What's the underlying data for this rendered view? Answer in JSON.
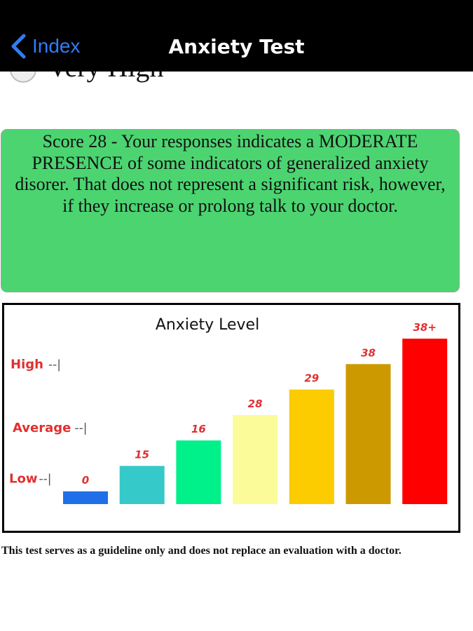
{
  "nav": {
    "back_label": "Index",
    "title": "Anxiety Test"
  },
  "partial_option": {
    "label": "Very High"
  },
  "result": {
    "text": "Score 28 - Your responses indicates a MODERATE PRESENCE of some indicators of generalized anxiety disorer. That does not represent a significant risk, however, if they increase or prolong talk to your doctor.",
    "background": "#4cd471"
  },
  "chart_data": {
    "type": "bar",
    "title": "Anxiety Level",
    "categories": [
      "0",
      "15",
      "16",
      "28",
      "29",
      "38",
      "38+"
    ],
    "values": [
      1,
      3,
      5,
      7,
      9,
      11,
      13
    ],
    "data_labels": [
      "0",
      "15",
      "16",
      "28",
      "29",
      "38",
      "38+"
    ],
    "colors": [
      "#1f6fe8",
      "#36c9c9",
      "#00f08a",
      "#fbfb9a",
      "#fccb00",
      "#cc9a00",
      "#ff0000"
    ],
    "label_color": "#e03030",
    "y_markers": [
      {
        "label": "High",
        "value": 11
      },
      {
        "label": "Average",
        "value": 6
      },
      {
        "label": "Low",
        "value": 2
      }
    ],
    "ylim": [
      0,
      13
    ],
    "grid": false
  },
  "disclaimer": "This test serves as a guideline only and does not replace an evaluation with a doctor."
}
